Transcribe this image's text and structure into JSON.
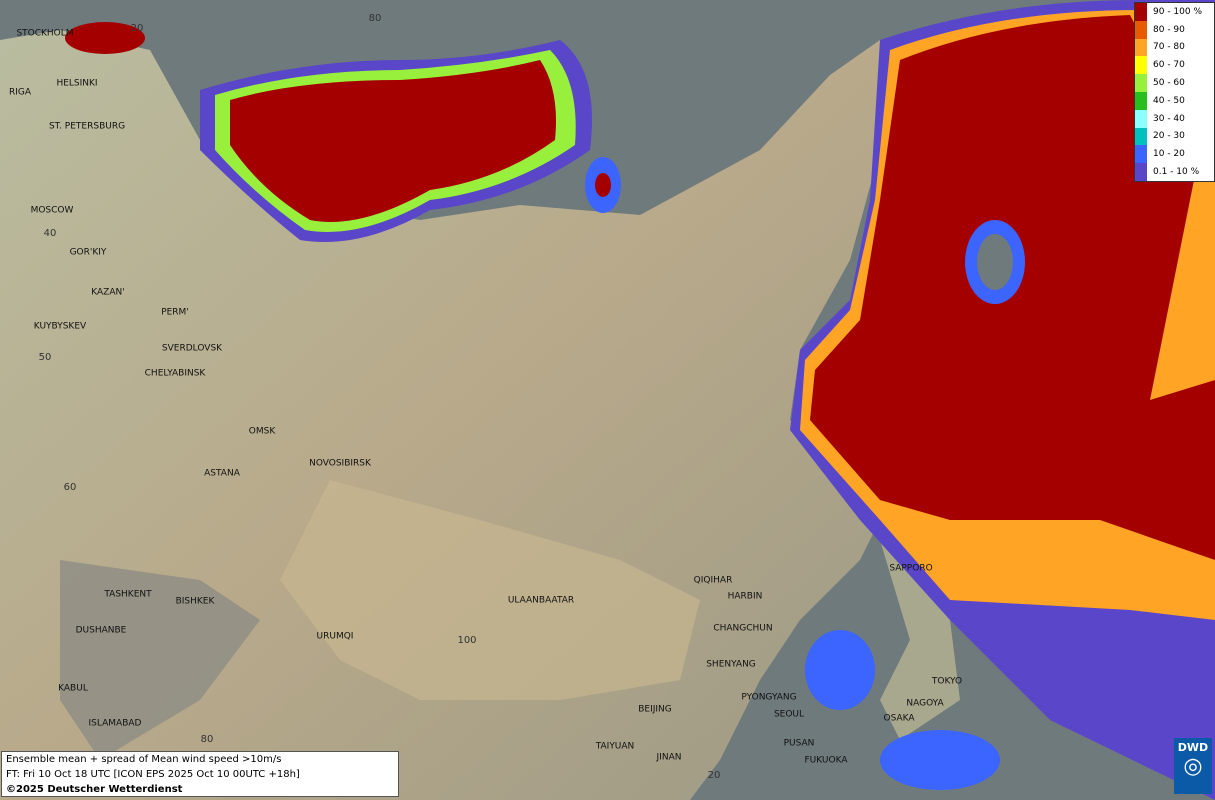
{
  "legend": {
    "items": [
      {
        "label": "90 - 100 %",
        "color": "#a50000"
      },
      {
        "label": "80 - 90",
        "color": "#e85a00"
      },
      {
        "label": "70 - 80",
        "color": "#ffa424"
      },
      {
        "label": "60 - 70",
        "color": "#ffff00"
      },
      {
        "label": "50 - 60",
        "color": "#98f03c"
      },
      {
        "label": "40 - 50",
        "color": "#28be1e"
      },
      {
        "label": "30 - 40",
        "color": "#8cffff"
      },
      {
        "label": "20 - 30",
        "color": "#00c0c0"
      },
      {
        "label": "10 - 20",
        "color": "#3c64ff"
      },
      {
        "label": "0.1 - 10 %",
        "color": "#5a46c8"
      }
    ]
  },
  "cities": [
    "STOCKHOLM",
    "HELSINKI",
    "RIGA",
    "ST. PETERSBURG",
    "MOSCOW",
    "GOR'KIY",
    "KAZAN'",
    "PERM'",
    "KUYBYSKEV",
    "SVERDLOVSK",
    "CHELYABINSK",
    "OMSK",
    "NOVOSIBIRSK",
    "ASTANA",
    "TASHKENT",
    "BISHKEK",
    "DUSHANBE",
    "URUMQI",
    "KABUL",
    "ISLAMABAD",
    "ULAANBAATAR",
    "QIQIHAR",
    "HARBIN",
    "CHANGCHUN",
    "SHENYANG",
    "BEIJING",
    "PYONGYANG",
    "SEOUL",
    "TAIYUAN",
    "JINAN",
    "PUSAN",
    "FUKUOKA",
    "SAPPORO",
    "TOKYO",
    "NAGOYA",
    "OSAKA"
  ],
  "graticule_labels": [
    "20",
    "80",
    "40",
    "50",
    "60",
    "80",
    "100",
    "20"
  ],
  "footer": {
    "line1": "Ensemble mean + spread of Mean wind speed >10m/s",
    "line2": "FT: Fri 10 Oct 18 UTC [ICON EPS 2025 Oct 10 00UTC +18h]",
    "line3": "©2025 Deutscher Wetterdienst"
  },
  "logo": "DWD"
}
